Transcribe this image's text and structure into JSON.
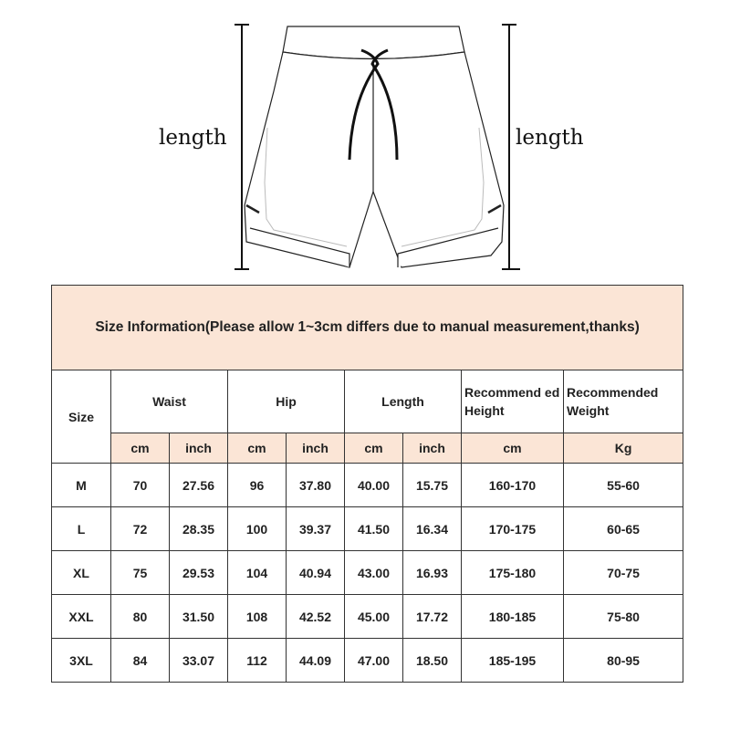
{
  "diagram": {
    "left_label": "length",
    "right_label": "length"
  },
  "table": {
    "title": "Size Information(Please allow 1~3cm differs due to manual measurement,thanks)",
    "headers": {
      "size": "Size",
      "waist": "Waist",
      "hip": "Hip",
      "length": "Length",
      "height": "Recommend ed Height",
      "weight": "Recommended Weight"
    },
    "units": [
      "cm",
      "inch",
      "cm",
      "inch",
      "cm",
      "inch",
      "cm",
      "Kg"
    ],
    "rows": [
      [
        "M",
        "70",
        "27.56",
        "96",
        "37.80",
        "40.00",
        "15.75",
        "160-170",
        "55-60"
      ],
      [
        "L",
        "72",
        "28.35",
        "100",
        "39.37",
        "41.50",
        "16.34",
        "170-175",
        "60-65"
      ],
      [
        "XL",
        "75",
        "29.53",
        "104",
        "40.94",
        "43.00",
        "16.93",
        "175-180",
        "70-75"
      ],
      [
        "XXL",
        "80",
        "31.50",
        "108",
        "42.52",
        "45.00",
        "17.72",
        "180-185",
        "75-80"
      ],
      [
        "3XL",
        "84",
        "33.07",
        "112",
        "44.09",
        "47.00",
        "18.50",
        "185-195",
        "80-95"
      ]
    ],
    "header_color": "#fbe5d6"
  }
}
